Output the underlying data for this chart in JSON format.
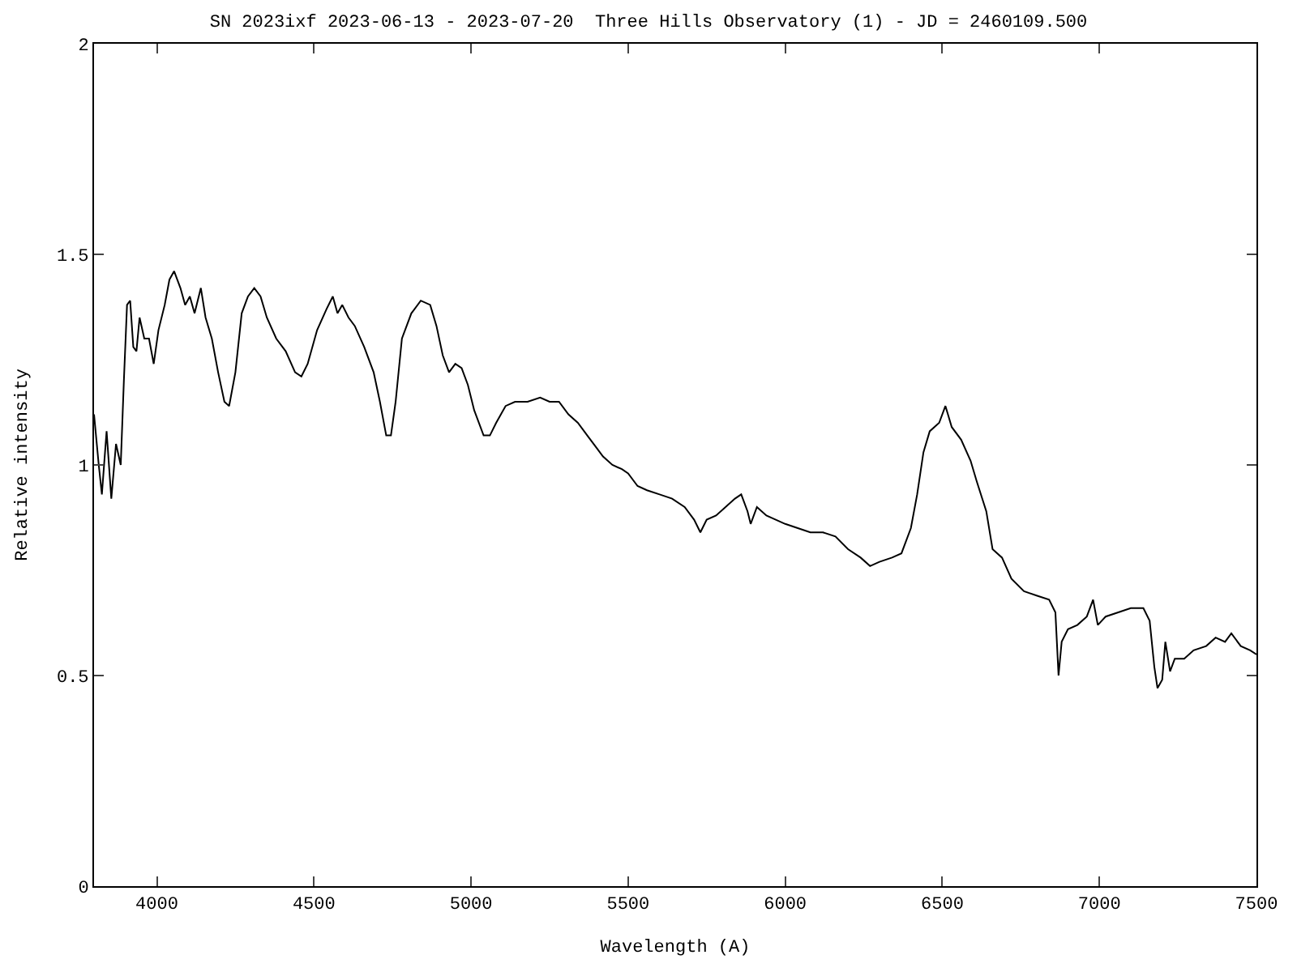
{
  "chart_data": {
    "type": "line",
    "title": "SN 2023ixf 2023-06-13 - 2023-07-20  Three Hills Observatory (1) - JD = 2460109.500",
    "xlabel": "Wavelength (A)",
    "ylabel": "Relative intensity",
    "x": [
      3800,
      3815,
      3825,
      3840,
      3855,
      3870,
      3885,
      3895,
      3905,
      3915,
      3925,
      3935,
      3945,
      3960,
      3975,
      3990,
      4005,
      4025,
      4040,
      4055,
      4075,
      4090,
      4105,
      4120,
      4140,
      4155,
      4175,
      4195,
      4215,
      4230,
      4250,
      4270,
      4290,
      4310,
      4330,
      4350,
      4380,
      4410,
      4440,
      4460,
      4480,
      4510,
      4540,
      4560,
      4575,
      4590,
      4610,
      4630,
      4660,
      4690,
      4710,
      4730,
      4745,
      4760,
      4780,
      4810,
      4840,
      4870,
      4890,
      4910,
      4930,
      4950,
      4970,
      4990,
      5010,
      5040,
      5060,
      5080,
      5110,
      5140,
      5180,
      5220,
      5250,
      5280,
      5310,
      5340,
      5370,
      5400,
      5420,
      5450,
      5480,
      5500,
      5530,
      5560,
      5600,
      5640,
      5680,
      5710,
      5730,
      5750,
      5780,
      5810,
      5840,
      5860,
      5880,
      5890,
      5910,
      5940,
      5970,
      6000,
      6040,
      6080,
      6120,
      6160,
      6200,
      6240,
      6270,
      6300,
      6340,
      6370,
      6400,
      6420,
      6440,
      6460,
      6490,
      6510,
      6530,
      6560,
      6590,
      6610,
      6640,
      6660,
      6690,
      6720,
      6760,
      6800,
      6840,
      6860,
      6870,
      6880,
      6900,
      6930,
      6960,
      6980,
      6995,
      7020,
      7060,
      7100,
      7140,
      7160,
      7175,
      7185,
      7200,
      7210,
      7225,
      7240,
      7270,
      7300,
      7340,
      7370,
      7400,
      7420,
      7450,
      7480,
      7500
    ],
    "series": [
      {
        "color": "#000000",
        "values": [
          1.12,
          1.0,
          0.93,
          1.08,
          0.92,
          1.05,
          1.0,
          1.2,
          1.38,
          1.39,
          1.28,
          1.27,
          1.35,
          1.3,
          1.3,
          1.24,
          1.32,
          1.38,
          1.44,
          1.46,
          1.42,
          1.38,
          1.4,
          1.36,
          1.42,
          1.35,
          1.3,
          1.22,
          1.15,
          1.14,
          1.22,
          1.36,
          1.4,
          1.42,
          1.4,
          1.35,
          1.3,
          1.27,
          1.22,
          1.21,
          1.24,
          1.32,
          1.37,
          1.4,
          1.36,
          1.38,
          1.35,
          1.33,
          1.28,
          1.22,
          1.15,
          1.07,
          1.07,
          1.15,
          1.3,
          1.36,
          1.39,
          1.38,
          1.33,
          1.26,
          1.22,
          1.24,
          1.23,
          1.19,
          1.13,
          1.07,
          1.07,
          1.1,
          1.14,
          1.15,
          1.15,
          1.16,
          1.15,
          1.15,
          1.12,
          1.1,
          1.07,
          1.04,
          1.02,
          1.0,
          0.99,
          0.98,
          0.95,
          0.94,
          0.93,
          0.92,
          0.9,
          0.87,
          0.84,
          0.87,
          0.88,
          0.9,
          0.92,
          0.93,
          0.89,
          0.86,
          0.9,
          0.88,
          0.87,
          0.86,
          0.85,
          0.84,
          0.84,
          0.83,
          0.8,
          0.78,
          0.76,
          0.77,
          0.78,
          0.79,
          0.85,
          0.93,
          1.03,
          1.08,
          1.1,
          1.14,
          1.09,
          1.06,
          1.01,
          0.96,
          0.89,
          0.8,
          0.78,
          0.73,
          0.7,
          0.69,
          0.68,
          0.65,
          0.5,
          0.58,
          0.61,
          0.62,
          0.64,
          0.68,
          0.62,
          0.64,
          0.65,
          0.66,
          0.66,
          0.63,
          0.52,
          0.47,
          0.49,
          0.58,
          0.51,
          0.54,
          0.54,
          0.56,
          0.57,
          0.59,
          0.58,
          0.6,
          0.57,
          0.56,
          0.55
        ]
      }
    ],
    "xlim": [
      3800,
      7500
    ],
    "xticks": [
      4000,
      4500,
      5000,
      5500,
      6000,
      6500,
      7000,
      7500
    ],
    "ylim": [
      0,
      2
    ],
    "yticks": [
      0,
      0.5,
      1,
      1.5,
      2
    ],
    "legend": false,
    "marker": "none",
    "line_style": "solid"
  }
}
